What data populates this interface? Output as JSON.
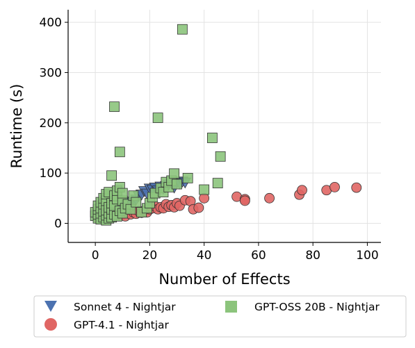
{
  "chart_data": {
    "type": "scatter",
    "title": "",
    "xlabel": "Number of Effects",
    "ylabel": "Runtime (s)",
    "xlim": [
      -10,
      105
    ],
    "ylim": [
      -38,
      425
    ],
    "xticks": [
      0,
      20,
      40,
      60,
      80,
      100
    ],
    "yticks": [
      0,
      100,
      200,
      300,
      400
    ],
    "grid": true,
    "legend_position": "bottom",
    "series": [
      {
        "name": "Sonnet 4 - Nightjar",
        "marker": "triangle-down",
        "color": "#4c72b0",
        "points": [
          [
            2,
            18
          ],
          [
            3,
            22
          ],
          [
            4,
            28
          ],
          [
            5,
            20
          ],
          [
            6,
            32
          ],
          [
            7,
            26
          ],
          [
            8,
            35
          ],
          [
            9,
            30
          ],
          [
            10,
            38
          ],
          [
            11,
            36
          ],
          [
            12,
            40
          ],
          [
            13,
            42
          ],
          [
            14,
            44
          ],
          [
            15,
            48
          ],
          [
            16,
            55
          ],
          [
            17,
            58
          ],
          [
            18,
            65
          ],
          [
            19,
            60
          ],
          [
            20,
            70
          ],
          [
            21,
            68
          ],
          [
            22,
            72
          ],
          [
            23,
            66
          ],
          [
            24,
            74
          ],
          [
            25,
            70
          ],
          [
            26,
            75
          ],
          [
            27,
            78
          ],
          [
            28,
            80
          ],
          [
            29,
            72
          ],
          [
            30,
            82
          ],
          [
            31,
            80
          ],
          [
            32,
            84
          ],
          [
            33,
            82
          ]
        ]
      },
      {
        "name": "GPT-4.1 - Nightjar",
        "marker": "circle",
        "color": "#e06664",
        "points": [
          [
            1,
            10
          ],
          [
            2,
            14
          ],
          [
            3,
            12
          ],
          [
            4,
            18
          ],
          [
            5,
            15
          ],
          [
            6,
            20
          ],
          [
            7,
            17
          ],
          [
            8,
            22
          ],
          [
            9,
            16
          ],
          [
            10,
            18
          ],
          [
            11,
            14
          ],
          [
            12,
            20
          ],
          [
            13,
            18
          ],
          [
            14,
            22
          ],
          [
            15,
            19
          ],
          [
            16,
            24
          ],
          [
            17,
            21
          ],
          [
            18,
            25
          ],
          [
            19,
            22
          ],
          [
            20,
            28
          ],
          [
            21,
            30
          ],
          [
            22,
            34
          ],
          [
            23,
            28
          ],
          [
            24,
            32
          ],
          [
            25,
            30
          ],
          [
            26,
            38
          ],
          [
            27,
            33
          ],
          [
            28,
            36
          ],
          [
            29,
            32
          ],
          [
            30,
            40
          ],
          [
            31,
            35
          ],
          [
            33,
            46
          ],
          [
            35,
            44
          ],
          [
            36,
            28
          ],
          [
            38,
            31
          ],
          [
            40,
            50
          ],
          [
            52,
            53
          ],
          [
            55,
            48
          ],
          [
            55,
            45
          ],
          [
            64,
            50
          ],
          [
            75,
            57
          ],
          [
            76,
            66
          ],
          [
            85,
            66
          ],
          [
            88,
            72
          ],
          [
            96,
            71
          ]
        ]
      },
      {
        "name": "GPT-OSS 20B - Nightjar",
        "marker": "square",
        "color": "#8cc47c",
        "points": [
          [
            0,
            15
          ],
          [
            0,
            22
          ],
          [
            1,
            10
          ],
          [
            1,
            18
          ],
          [
            1,
            28
          ],
          [
            1,
            35
          ],
          [
            2,
            8
          ],
          [
            2,
            20
          ],
          [
            2,
            30
          ],
          [
            2,
            42
          ],
          [
            3,
            12
          ],
          [
            3,
            24
          ],
          [
            3,
            38
          ],
          [
            3,
            50
          ],
          [
            4,
            6
          ],
          [
            4,
            16
          ],
          [
            4,
            26
          ],
          [
            4,
            45
          ],
          [
            4,
            58
          ],
          [
            5,
            10
          ],
          [
            5,
            20
          ],
          [
            5,
            32
          ],
          [
            5,
            62
          ],
          [
            6,
            12
          ],
          [
            6,
            28
          ],
          [
            6,
            40
          ],
          [
            6,
            95
          ],
          [
            7,
            232
          ],
          [
            7,
            18
          ],
          [
            7,
            35
          ],
          [
            7,
            55
          ],
          [
            8,
            14
          ],
          [
            8,
            48
          ],
          [
            8,
            65
          ],
          [
            9,
            142
          ],
          [
            9,
            25
          ],
          [
            9,
            72
          ],
          [
            10,
            20
          ],
          [
            10,
            45
          ],
          [
            10,
            60
          ],
          [
            11,
            30
          ],
          [
            12,
            38
          ],
          [
            13,
            28
          ],
          [
            14,
            55
          ],
          [
            15,
            42
          ],
          [
            17,
            22
          ],
          [
            19,
            30
          ],
          [
            20,
            40
          ],
          [
            21,
            52
          ],
          [
            22,
            60
          ],
          [
            23,
            210
          ],
          [
            24,
            70
          ],
          [
            25,
            62
          ],
          [
            26,
            82
          ],
          [
            27,
            72
          ],
          [
            28,
            85
          ],
          [
            29,
            99
          ],
          [
            30,
            78
          ],
          [
            32,
            386
          ],
          [
            34,
            90
          ],
          [
            40,
            67
          ],
          [
            43,
            170
          ],
          [
            45,
            80
          ],
          [
            46,
            133
          ]
        ]
      }
    ]
  }
}
